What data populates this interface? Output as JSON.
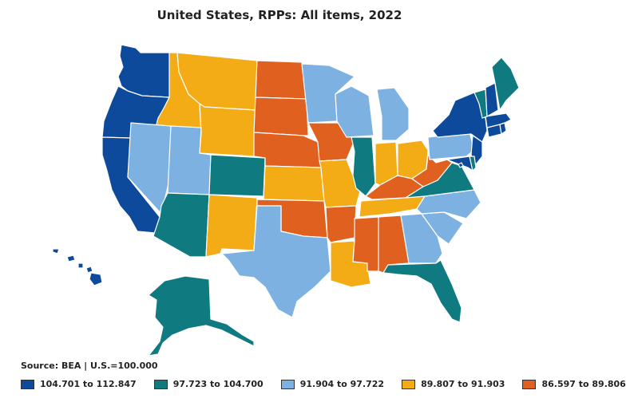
{
  "title": "United States, RPPs: All items, 2022",
  "source": "Source: BEA | U.S.=100.000",
  "colors": {
    "c1": "#0d4a9c",
    "c2": "#0f7a80",
    "c3": "#7db1e2",
    "c4": "#f3ab16",
    "c5": "#e0601f"
  },
  "legend": [
    {
      "label": "104.701 to 112.847",
      "color": "#0d4a9c"
    },
    {
      "label": "97.723 to 104.700",
      "color": "#0f7a80"
    },
    {
      "label": "91.904 to 97.722",
      "color": "#7db1e2"
    },
    {
      "label": "89.807 to 91.903",
      "color": "#f3ab16"
    },
    {
      "label": "86.597 to 89.806",
      "color": "#e0601f"
    }
  ],
  "states": [
    {
      "id": "WA",
      "cls": "c1"
    },
    {
      "id": "OR",
      "cls": "c1"
    },
    {
      "id": "CA",
      "cls": "c1"
    },
    {
      "id": "ID",
      "cls": "c4"
    },
    {
      "id": "MT",
      "cls": "c4"
    },
    {
      "id": "WY",
      "cls": "c4"
    },
    {
      "id": "NV",
      "cls": "c3"
    },
    {
      "id": "UT",
      "cls": "c3"
    },
    {
      "id": "AZ",
      "cls": "c2"
    },
    {
      "id": "CO",
      "cls": "c2"
    },
    {
      "id": "NM",
      "cls": "c4"
    },
    {
      "id": "ND",
      "cls": "c5"
    },
    {
      "id": "SD",
      "cls": "c5"
    },
    {
      "id": "NE",
      "cls": "c5"
    },
    {
      "id": "KS",
      "cls": "c4"
    },
    {
      "id": "OK",
      "cls": "c5"
    },
    {
      "id": "TX",
      "cls": "c3"
    },
    {
      "id": "MN",
      "cls": "c3"
    },
    {
      "id": "IA",
      "cls": "c5"
    },
    {
      "id": "MO",
      "cls": "c4"
    },
    {
      "id": "AR",
      "cls": "c5"
    },
    {
      "id": "LA",
      "cls": "c4"
    },
    {
      "id": "WI",
      "cls": "c3"
    },
    {
      "id": "IL",
      "cls": "c2"
    },
    {
      "id": "MI",
      "cls": "c3"
    },
    {
      "id": "IN",
      "cls": "c4"
    },
    {
      "id": "OH",
      "cls": "c4"
    },
    {
      "id": "KY",
      "cls": "c5"
    },
    {
      "id": "TN",
      "cls": "c4"
    },
    {
      "id": "MS",
      "cls": "c5"
    },
    {
      "id": "AL",
      "cls": "c5"
    },
    {
      "id": "GA",
      "cls": "c3"
    },
    {
      "id": "FL",
      "cls": "c2"
    },
    {
      "id": "SC",
      "cls": "c3"
    },
    {
      "id": "NC",
      "cls": "c3"
    },
    {
      "id": "VA",
      "cls": "c2"
    },
    {
      "id": "WV",
      "cls": "c5"
    },
    {
      "id": "PA",
      "cls": "c3"
    },
    {
      "id": "NY",
      "cls": "c1"
    },
    {
      "id": "NJ",
      "cls": "c1"
    },
    {
      "id": "MD",
      "cls": "c1"
    },
    {
      "id": "DE",
      "cls": "c2"
    },
    {
      "id": "DC",
      "cls": "c1"
    },
    {
      "id": "CT",
      "cls": "c1"
    },
    {
      "id": "MA",
      "cls": "c1"
    },
    {
      "id": "RI",
      "cls": "c1"
    },
    {
      "id": "VT",
      "cls": "c2"
    },
    {
      "id": "NH",
      "cls": "c1"
    },
    {
      "id": "ME",
      "cls": "c2"
    },
    {
      "id": "AK",
      "cls": "c2"
    },
    {
      "id": "HI",
      "cls": "c1"
    }
  ]
}
